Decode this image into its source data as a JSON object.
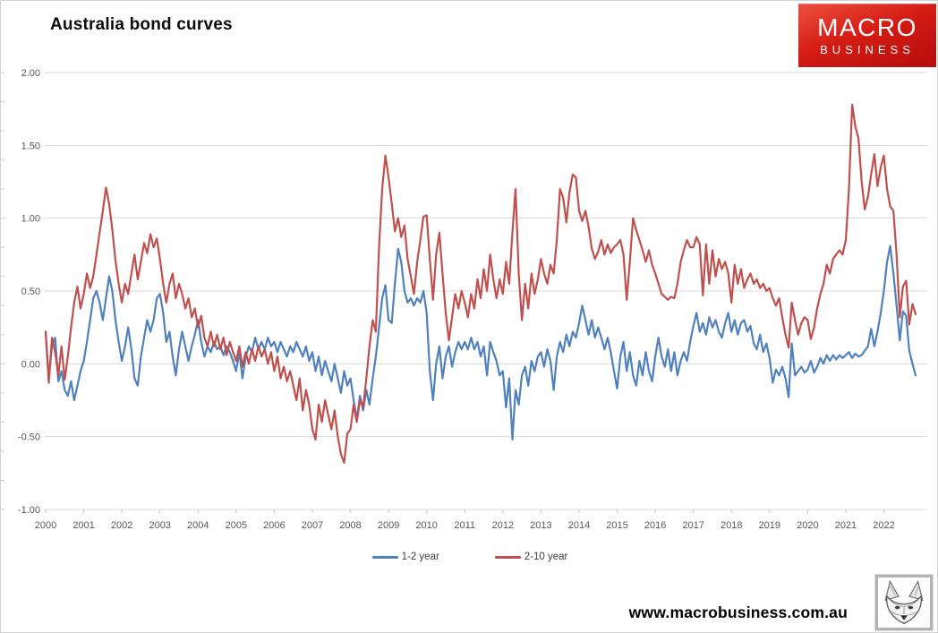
{
  "header": {
    "title": "Australia bond curves"
  },
  "logo": {
    "line1": "MACRO",
    "line2": "BUSINESS",
    "bg_color": "#c61414",
    "text_color": "#ffffff"
  },
  "footer": {
    "url": "www.macrobusiness.com.au",
    "icon": "fox-sketch-icon"
  },
  "chart_data": {
    "type": "line",
    "title": "Australia bond curves",
    "x_unit": "monthly",
    "x_range": [
      "2000-01",
      "2022-11"
    ],
    "x_tick_labels": [
      "2000",
      "2001",
      "2002",
      "2003",
      "2004",
      "2005",
      "2006",
      "2007",
      "2008",
      "2009",
      "2010",
      "2011",
      "2012",
      "2013",
      "2014",
      "2015",
      "2016",
      "2017",
      "2018",
      "2019",
      "2020",
      "2021",
      "2022"
    ],
    "ylim": [
      -1.0,
      2.0
    ],
    "y_ticks": [
      2.0,
      1.5,
      1.0,
      0.5,
      0.0,
      -0.5,
      -1.0
    ],
    "y_tick_labels": [
      "2.00",
      "1.50",
      "1.00",
      "0.50",
      "0.00",
      "-0.50",
      "-1.00"
    ],
    "grid": true,
    "gridline_color": "#d9d9d9",
    "axis_label_color": "#595959",
    "legend_position": "bottom-center",
    "series": [
      {
        "name": "1-2 year",
        "color": "#4F81BD",
        "values": [
          0.22,
          -0.1,
          0.12,
          0.18,
          -0.12,
          -0.05,
          -0.18,
          -0.22,
          -0.12,
          -0.25,
          -0.15,
          -0.05,
          0.02,
          0.15,
          0.3,
          0.45,
          0.5,
          0.42,
          0.3,
          0.45,
          0.6,
          0.5,
          0.3,
          0.15,
          0.02,
          0.12,
          0.25,
          0.1,
          -0.1,
          -0.15,
          0.05,
          0.18,
          0.3,
          0.22,
          0.3,
          0.45,
          0.48,
          0.35,
          0.15,
          0.22,
          0.05,
          -0.08,
          0.1,
          0.22,
          0.12,
          0.02,
          0.12,
          0.2,
          0.3,
          0.15,
          0.05,
          0.12,
          0.08,
          0.15,
          0.1,
          0.12,
          0.06,
          0.12,
          0.08,
          0.02,
          -0.05,
          0.08,
          -0.1,
          0.05,
          0.12,
          0.08,
          0.18,
          0.1,
          0.15,
          0.1,
          0.18,
          0.12,
          0.15,
          0.08,
          0.15,
          0.1,
          0.05,
          0.12,
          0.08,
          0.15,
          0.1,
          0.05,
          0.12,
          0.02,
          0.08,
          -0.05,
          0.05,
          -0.08,
          0.02,
          -0.05,
          -0.12,
          0.0,
          -0.1,
          -0.2,
          -0.05,
          -0.15,
          -0.1,
          -0.25,
          -0.38,
          -0.22,
          -0.32,
          -0.18,
          -0.28,
          -0.1,
          0.05,
          0.25,
          0.45,
          0.54,
          0.3,
          0.28,
          0.55,
          0.79,
          0.7,
          0.5,
          0.42,
          0.45,
          0.4,
          0.45,
          0.42,
          0.5,
          0.35,
          -0.05,
          -0.25,
          0.0,
          0.12,
          -0.1,
          0.05,
          0.12,
          -0.02,
          0.08,
          0.15,
          0.1,
          0.15,
          0.1,
          0.18,
          0.1,
          0.15,
          0.05,
          0.12,
          -0.08,
          0.15,
          0.08,
          0.02,
          -0.08,
          -0.05,
          -0.3,
          -0.1,
          -0.52,
          -0.18,
          -0.28,
          -0.08,
          -0.02,
          -0.15,
          0.02,
          -0.05,
          0.05,
          0.08,
          -0.02,
          0.1,
          0.02,
          -0.18,
          0.05,
          0.15,
          0.08,
          0.2,
          0.12,
          0.22,
          0.18,
          0.28,
          0.4,
          0.3,
          0.2,
          0.3,
          0.18,
          0.25,
          0.18,
          0.1,
          0.18,
          0.08,
          -0.05,
          -0.17,
          0.05,
          0.15,
          -0.05,
          0.08,
          -0.08,
          -0.15,
          0.02,
          -0.08,
          0.08,
          -0.05,
          -0.12,
          0.05,
          0.18,
          0.05,
          -0.02,
          0.1,
          -0.05,
          0.08,
          -0.08,
          0.02,
          0.08,
          0.02,
          0.15,
          0.26,
          0.35,
          0.22,
          0.28,
          0.2,
          0.32,
          0.25,
          0.3,
          0.22,
          0.18,
          0.28,
          0.35,
          0.22,
          0.3,
          0.2,
          0.28,
          0.3,
          0.22,
          0.26,
          0.14,
          0.1,
          0.2,
          0.08,
          0.14,
          0.04,
          -0.13,
          -0.04,
          -0.08,
          -0.02,
          -0.1,
          -0.23,
          0.14,
          -0.08,
          -0.05,
          -0.02,
          -0.06,
          -0.04,
          0.02,
          -0.06,
          -0.02,
          0.04,
          0.0,
          0.06,
          0.02,
          0.06,
          0.03,
          0.06,
          0.04,
          0.06,
          0.08,
          0.04,
          0.07,
          0.05,
          0.06,
          0.09,
          0.12,
          0.24,
          0.12,
          0.22,
          0.35,
          0.5,
          0.7,
          0.81,
          0.62,
          0.4,
          0.16,
          0.36,
          0.33,
          0.09,
          0.0,
          -0.08
        ]
      },
      {
        "name": "2-10 year",
        "color": "#C0504D",
        "values": [
          0.22,
          -0.13,
          0.18,
          0.08,
          -0.08,
          0.12,
          -0.11,
          0.05,
          0.25,
          0.42,
          0.53,
          0.38,
          0.48,
          0.62,
          0.52,
          0.6,
          0.75,
          0.9,
          1.05,
          1.21,
          1.1,
          0.92,
          0.71,
          0.55,
          0.42,
          0.55,
          0.48,
          0.62,
          0.75,
          0.58,
          0.7,
          0.83,
          0.76,
          0.89,
          0.8,
          0.86,
          0.72,
          0.55,
          0.42,
          0.55,
          0.62,
          0.45,
          0.55,
          0.48,
          0.38,
          0.45,
          0.32,
          0.38,
          0.25,
          0.33,
          0.18,
          0.12,
          0.22,
          0.12,
          0.2,
          0.1,
          0.18,
          0.06,
          0.15,
          0.08,
          0.02,
          0.12,
          -0.02,
          0.08,
          0.0,
          0.1,
          0.02,
          0.12,
          0.05,
          0.1,
          0.0,
          0.08,
          -0.05,
          0.05,
          -0.1,
          -0.02,
          -0.12,
          -0.05,
          -0.15,
          -0.25,
          -0.1,
          -0.32,
          -0.18,
          -0.28,
          -0.45,
          -0.52,
          -0.28,
          -0.4,
          -0.25,
          -0.35,
          -0.45,
          -0.32,
          -0.5,
          -0.62,
          -0.68,
          -0.48,
          -0.45,
          -0.28,
          -0.4,
          -0.25,
          -0.3,
          -0.1,
          0.12,
          0.3,
          0.22,
          0.8,
          1.2,
          1.43,
          1.28,
          1.1,
          0.91,
          1.0,
          0.87,
          0.95,
          0.72,
          0.6,
          0.48,
          0.7,
          0.85,
          1.01,
          1.02,
          0.72,
          0.44,
          0.75,
          0.9,
          0.62,
          0.35,
          0.16,
          0.32,
          0.48,
          0.38,
          0.5,
          0.42,
          0.32,
          0.48,
          0.38,
          0.58,
          0.45,
          0.65,
          0.5,
          0.75,
          0.58,
          0.45,
          0.58,
          0.48,
          0.7,
          0.55,
          0.9,
          1.2,
          0.62,
          0.3,
          0.55,
          0.38,
          0.62,
          0.48,
          0.58,
          0.72,
          0.62,
          0.55,
          0.68,
          0.62,
          0.85,
          1.2,
          1.14,
          0.97,
          1.18,
          1.3,
          1.28,
          1.05,
          0.98,
          1.05,
          0.94,
          0.79,
          0.72,
          0.77,
          0.85,
          0.75,
          0.82,
          0.76,
          0.8,
          0.82,
          0.85,
          0.75,
          0.44,
          0.7,
          1.0,
          0.92,
          0.85,
          0.78,
          0.7,
          0.78,
          0.68,
          0.62,
          0.55,
          0.48,
          0.46,
          0.44,
          0.46,
          0.45,
          0.55,
          0.7,
          0.78,
          0.85,
          0.8,
          0.8,
          0.87,
          0.82,
          0.47,
          0.82,
          0.55,
          0.78,
          0.6,
          0.72,
          0.65,
          0.7,
          0.62,
          0.42,
          0.68,
          0.55,
          0.65,
          0.52,
          0.58,
          0.62,
          0.55,
          0.58,
          0.52,
          0.55,
          0.5,
          0.52,
          0.45,
          0.4,
          0.45,
          0.32,
          0.2,
          0.11,
          0.42,
          0.3,
          0.2,
          0.28,
          0.32,
          0.3,
          0.17,
          0.25,
          0.38,
          0.48,
          0.55,
          0.68,
          0.62,
          0.72,
          0.75,
          0.78,
          0.75,
          0.85,
          1.2,
          1.78,
          1.63,
          1.55,
          1.25,
          1.06,
          1.15,
          1.3,
          1.44,
          1.22,
          1.35,
          1.43,
          1.2,
          1.08,
          1.05,
          0.75,
          0.32,
          0.53,
          0.57,
          0.27,
          0.41,
          0.34
        ]
      }
    ]
  }
}
